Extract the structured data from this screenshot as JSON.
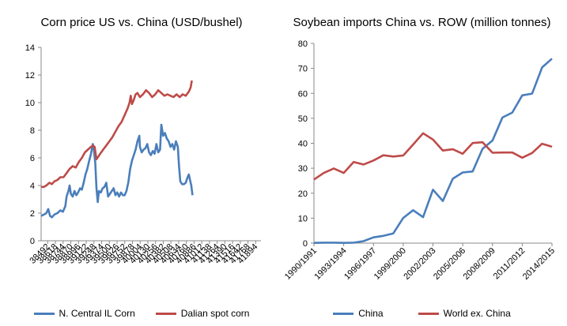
{
  "chart_data": [
    {
      "type": "line",
      "title": "Corn price US vs. China (USD/bushel)",
      "xlabel": "",
      "ylabel": "",
      "ylim": [
        0,
        14
      ],
      "yticks": [
        0,
        2,
        4,
        6,
        8,
        10,
        12,
        14
      ],
      "grid": false,
      "legend_position": "bottom",
      "x_tick_labels": [
        "38492",
        "38618",
        "38744",
        "38870",
        "38996",
        "39122",
        "39248",
        "39374",
        "39500",
        "39626",
        "39752",
        "39878",
        "40004",
        "40130",
        "40256",
        "40382",
        "40508",
        "40634",
        "40760",
        "40886",
        "41012",
        "41138",
        "41264",
        "41390",
        "41516",
        "41642",
        "41768",
        "41894"
      ],
      "series": [
        {
          "name": "N. Central IL Corn",
          "color": "#4a7ebb",
          "points": [
            [
              38384,
              1.8
            ],
            [
              38430,
              1.9
            ],
            [
              38470,
              2.0
            ],
            [
              38500,
              2.3
            ],
            [
              38530,
              1.8
            ],
            [
              38560,
              1.7
            ],
            [
              38600,
              1.9
            ],
            [
              38650,
              2.0
            ],
            [
              38700,
              2.2
            ],
            [
              38740,
              2.1
            ],
            [
              38780,
              2.5
            ],
            [
              38800,
              3.2
            ],
            [
              38830,
              3.6
            ],
            [
              38850,
              4.0
            ],
            [
              38870,
              3.4
            ],
            [
              38900,
              3.2
            ],
            [
              38930,
              3.6
            ],
            [
              38960,
              3.3
            ],
            [
              38990,
              3.5
            ],
            [
              39020,
              3.8
            ],
            [
              39050,
              3.7
            ],
            [
              39080,
              4.2
            ],
            [
              39110,
              4.8
            ],
            [
              39140,
              5.2
            ],
            [
              39170,
              5.8
            ],
            [
              39200,
              6.3
            ],
            [
              39230,
              7.0
            ],
            [
              39250,
              6.5
            ],
            [
              39270,
              5.6
            ],
            [
              39290,
              3.8
            ],
            [
              39310,
              2.8
            ],
            [
              39330,
              3.6
            ],
            [
              39360,
              3.5
            ],
            [
              39390,
              3.8
            ],
            [
              39420,
              3.9
            ],
            [
              39450,
              4.2
            ],
            [
              39480,
              3.2
            ],
            [
              39510,
              3.4
            ],
            [
              39540,
              3.6
            ],
            [
              39570,
              3.8
            ],
            [
              39600,
              3.3
            ],
            [
              39630,
              3.5
            ],
            [
              39660,
              3.2
            ],
            [
              39690,
              3.5
            ],
            [
              39720,
              3.3
            ],
            [
              39750,
              3.3
            ],
            [
              39780,
              3.6
            ],
            [
              39810,
              4.2
            ],
            [
              39840,
              5.2
            ],
            [
              39870,
              5.8
            ],
            [
              39900,
              6.2
            ],
            [
              39930,
              6.6
            ],
            [
              39960,
              7.2
            ],
            [
              39990,
              7.6
            ],
            [
              40000,
              6.8
            ],
            [
              40030,
              6.4
            ],
            [
              40060,
              6.6
            ],
            [
              40090,
              6.7
            ],
            [
              40120,
              7.0
            ],
            [
              40150,
              6.4
            ],
            [
              40180,
              6.2
            ],
            [
              40210,
              6.5
            ],
            [
              40240,
              6.3
            ],
            [
              40270,
              7.0
            ],
            [
              40300,
              6.4
            ],
            [
              40330,
              6.6
            ],
            [
              40350,
              8.4
            ],
            [
              40380,
              7.6
            ],
            [
              40410,
              7.8
            ],
            [
              40440,
              7.4
            ],
            [
              40470,
              7.2
            ],
            [
              40500,
              6.8
            ],
            [
              40530,
              7.0
            ],
            [
              40560,
              6.6
            ],
            [
              40590,
              7.2
            ],
            [
              40620,
              6.8
            ],
            [
              40640,
              5.4
            ],
            [
              40660,
              4.3
            ],
            [
              40690,
              4.1
            ],
            [
              40720,
              4.1
            ],
            [
              40750,
              4.2
            ],
            [
              40780,
              4.6
            ],
            [
              40800,
              4.8
            ],
            [
              40820,
              4.4
            ],
            [
              40840,
              4.0
            ],
            [
              40860,
              3.3
            ]
          ]
        },
        {
          "name": "Dalian spot corn",
          "color": "#be4b48",
          "points": [
            [
              38384,
              3.9
            ],
            [
              38430,
              3.9
            ],
            [
              38470,
              4.0
            ],
            [
              38520,
              4.2
            ],
            [
              38560,
              4.1
            ],
            [
              38600,
              4.3
            ],
            [
              38650,
              4.4
            ],
            [
              38700,
              4.6
            ],
            [
              38750,
              4.6
            ],
            [
              38800,
              4.9
            ],
            [
              38850,
              5.2
            ],
            [
              38900,
              5.4
            ],
            [
              38950,
              5.3
            ],
            [
              39000,
              5.7
            ],
            [
              39050,
              6.0
            ],
            [
              39100,
              6.4
            ],
            [
              39150,
              6.6
            ],
            [
              39200,
              6.8
            ],
            [
              39230,
              6.9
            ],
            [
              39260,
              6.8
            ],
            [
              39290,
              5.9
            ],
            [
              39320,
              6.1
            ],
            [
              39350,
              6.3
            ],
            [
              39400,
              6.6
            ],
            [
              39450,
              6.9
            ],
            [
              39500,
              7.2
            ],
            [
              39550,
              7.5
            ],
            [
              39600,
              7.9
            ],
            [
              39650,
              8.3
            ],
            [
              39700,
              8.6
            ],
            [
              39750,
              9.1
            ],
            [
              39800,
              9.6
            ],
            [
              39830,
              10.0
            ],
            [
              39850,
              10.5
            ],
            [
              39870,
              9.9
            ],
            [
              39900,
              10.2
            ],
            [
              39930,
              10.6
            ],
            [
              39960,
              10.7
            ],
            [
              40000,
              10.4
            ],
            [
              40050,
              10.6
            ],
            [
              40100,
              10.9
            ],
            [
              40150,
              10.7
            ],
            [
              40200,
              10.4
            ],
            [
              40250,
              10.6
            ],
            [
              40300,
              10.9
            ],
            [
              40350,
              10.7
            ],
            [
              40400,
              10.5
            ],
            [
              40450,
              10.6
            ],
            [
              40500,
              10.5
            ],
            [
              40550,
              10.4
            ],
            [
              40600,
              10.6
            ],
            [
              40650,
              10.4
            ],
            [
              40700,
              10.6
            ],
            [
              40750,
              10.5
            ],
            [
              40800,
              10.8
            ],
            [
              40830,
              11.1
            ],
            [
              40850,
              11.6
            ]
          ]
        }
      ]
    },
    {
      "type": "line",
      "title": "Soybean imports China vs. ROW (million tonnes)",
      "xlabel": "",
      "ylabel": "",
      "ylim": [
        0,
        80
      ],
      "yticks": [
        0,
        10,
        20,
        30,
        40,
        50,
        60,
        70,
        80
      ],
      "grid": false,
      "legend_position": "bottom",
      "x_tick_labels": [
        "1990/1991",
        "1993/1994",
        "1996/1997",
        "1999/2000",
        "2002/2003",
        "2005/2006",
        "2008/2009",
        "2011/2012",
        "2014/2015"
      ],
      "categories": [
        "1990/1991",
        "1991/1992",
        "1992/1993",
        "1993/1994",
        "1994/1995",
        "1995/1996",
        "1996/1997",
        "1997/1998",
        "1998/1999",
        "1999/2000",
        "2000/2001",
        "2001/2002",
        "2002/2003",
        "2003/2004",
        "2004/2005",
        "2005/2006",
        "2006/2007",
        "2007/2008",
        "2008/2009",
        "2009/2010",
        "2010/2011",
        "2011/2012",
        "2012/2013",
        "2013/2014",
        "2014/2015"
      ],
      "series": [
        {
          "name": "China",
          "color": "#4a7ebb",
          "values": [
            0.1,
            0.2,
            0.2,
            0.1,
            0.2,
            0.8,
            2.3,
            2.9,
            3.9,
            10.1,
            13.2,
            10.4,
            21.4,
            16.9,
            25.8,
            28.3,
            28.7,
            37.8,
            41.1,
            50.3,
            52.3,
            59.2,
            59.9,
            70.4,
            73.9
          ]
        },
        {
          "name": "World ex. China",
          "color": "#be4b48",
          "values": [
            25.5,
            28.1,
            29.9,
            28.1,
            32.5,
            31.5,
            33.1,
            35.2,
            34.7,
            35.1,
            39.5,
            44.0,
            41.5,
            37.1,
            37.6,
            35.8,
            40.1,
            40.4,
            36.2,
            36.3,
            36.3,
            34.2,
            36.1,
            39.8,
            38.6
          ]
        }
      ]
    }
  ]
}
